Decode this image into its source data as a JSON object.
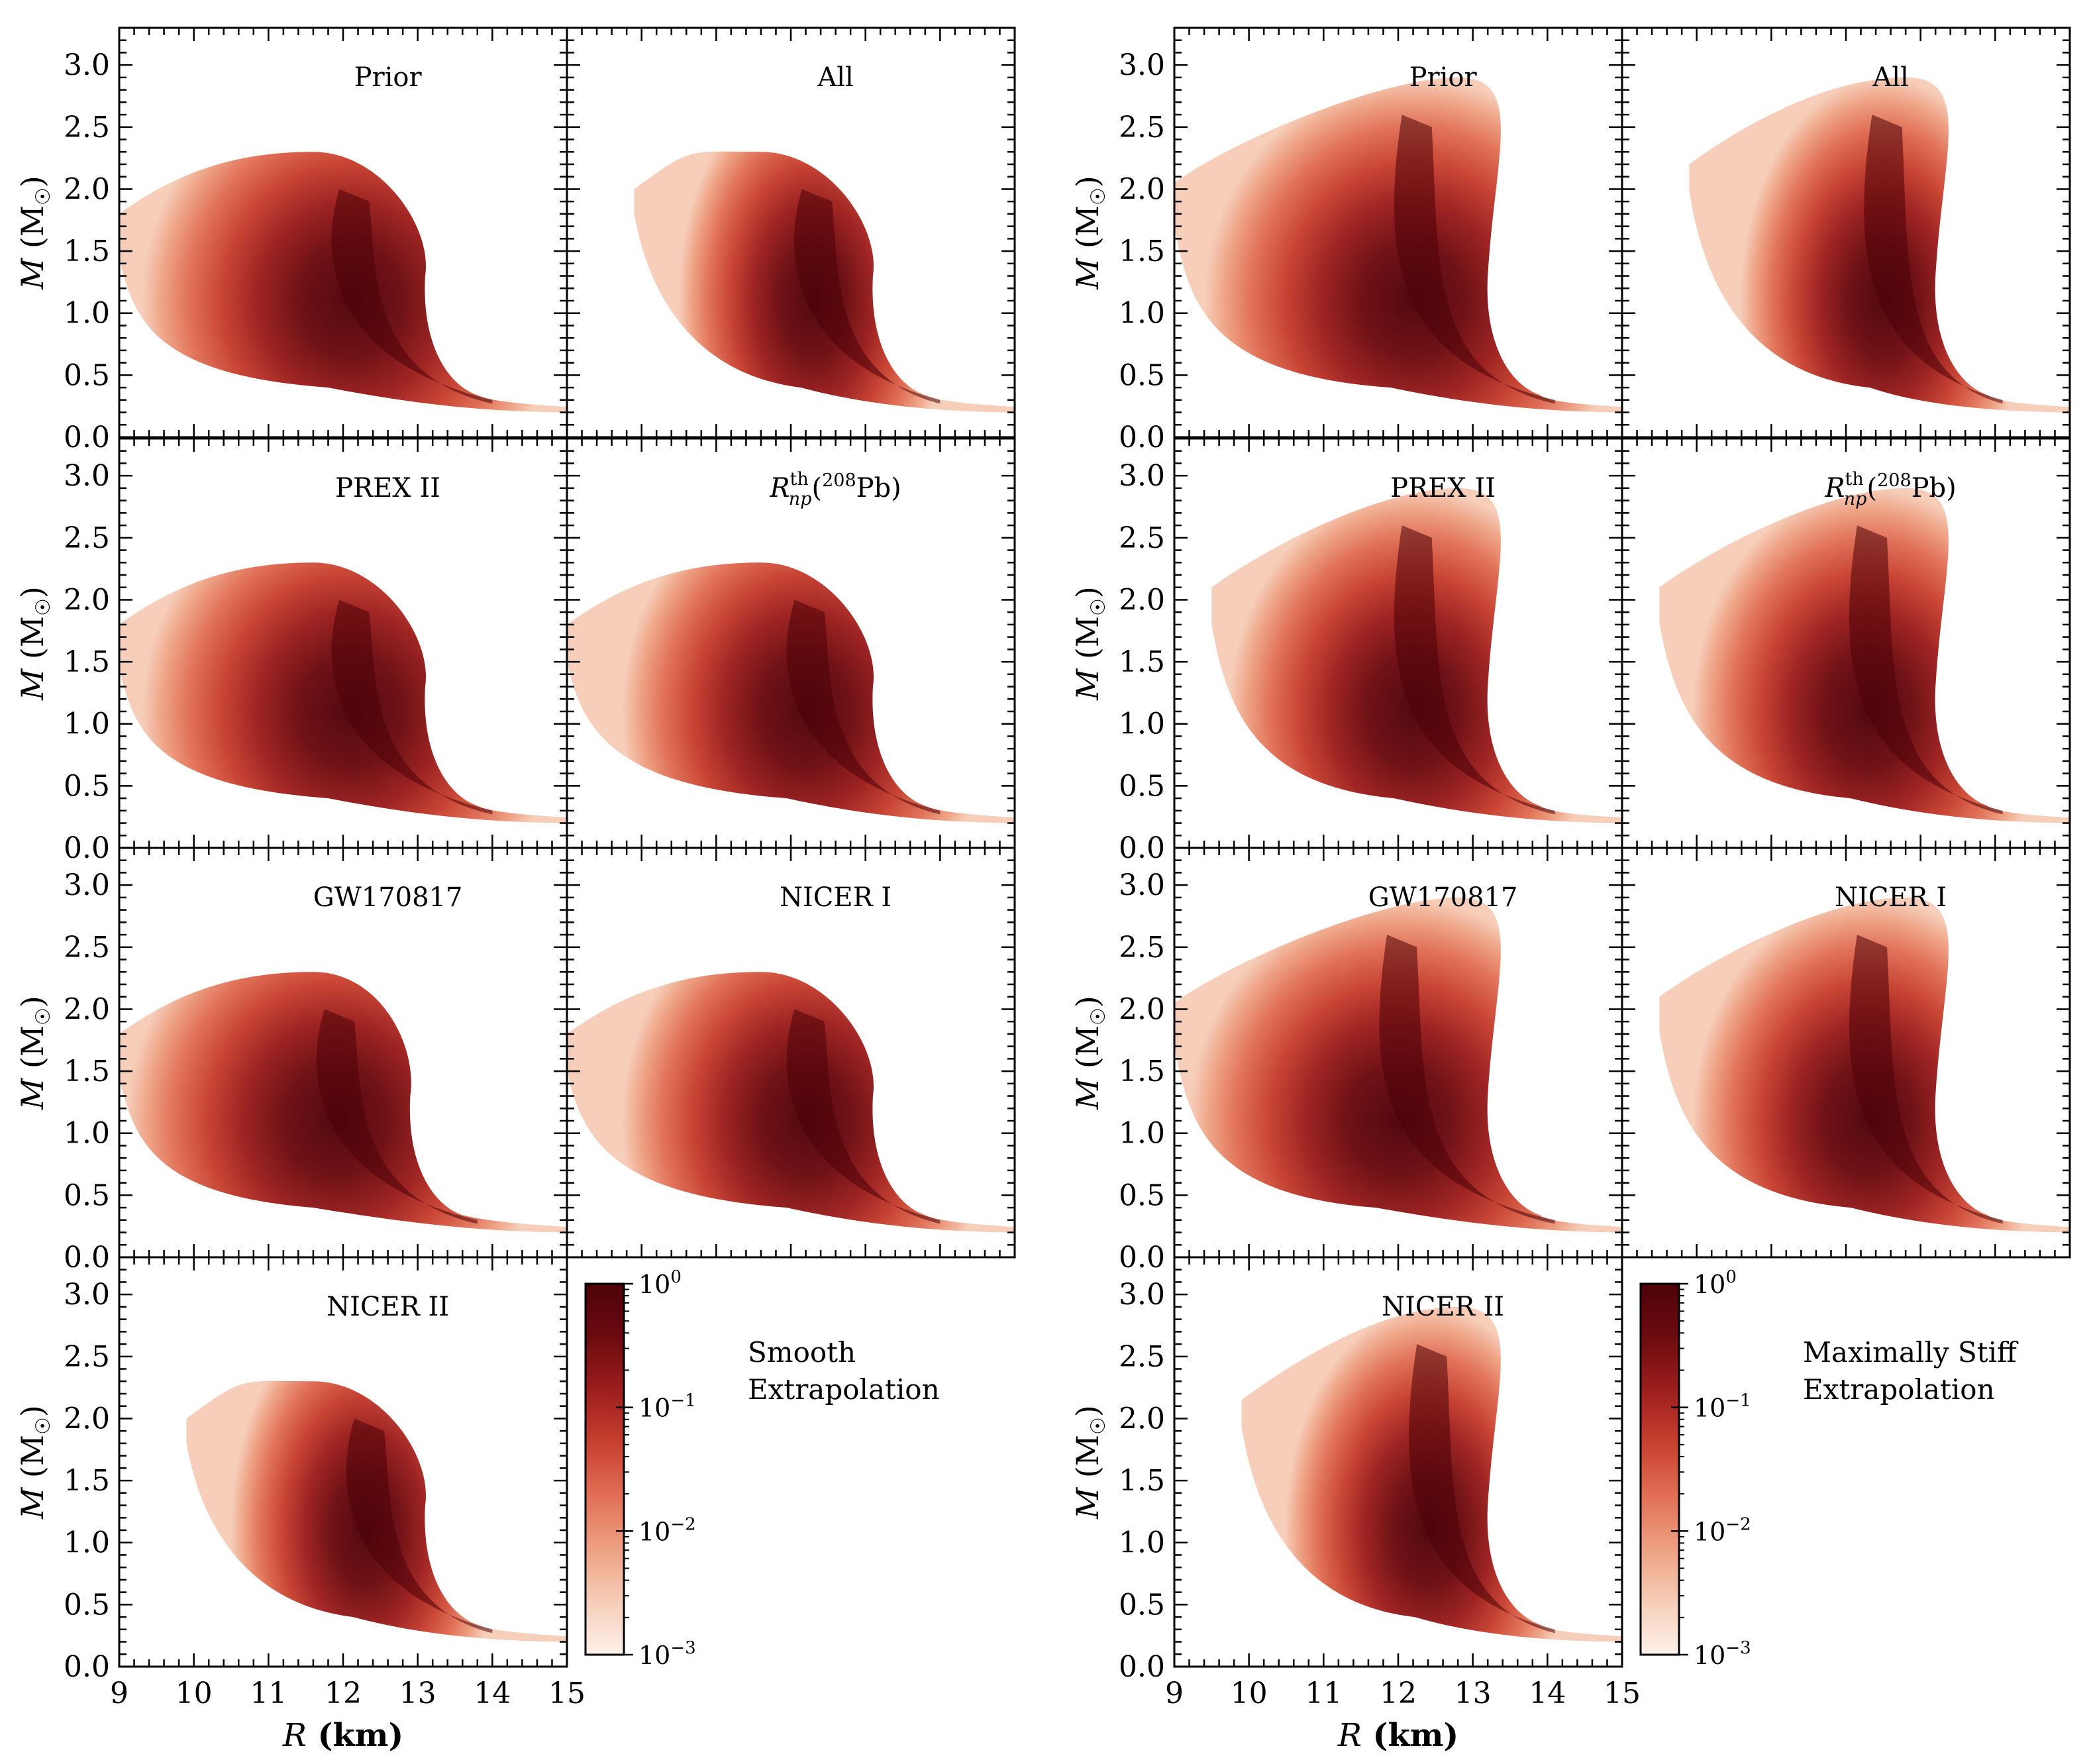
{
  "colors": {
    "scale": [
      "#fdf1ea",
      "#f6cdb8",
      "#eea082",
      "#e06f55",
      "#c7402f",
      "#9c1e1d",
      "#6b0b10",
      "#4d0208"
    ],
    "axis": "#000000",
    "background": "#ffffff"
  },
  "axes": {
    "xlabel_var": "R",
    "xlabel_unit": "(km)",
    "ylabel_var": "M",
    "ylabel_unit": "(M",
    "ylabel_sun": "☉",
    "ylabel_close": ")",
    "x_ticks": [
      "9",
      "10",
      "11",
      "12",
      "13",
      "14",
      "15"
    ],
    "y_ticks": [
      "0.0",
      "0.5",
      "1.0",
      "1.5",
      "2.0",
      "2.5",
      "3.0"
    ]
  },
  "colorbar": {
    "tick_base": "10",
    "exponents": [
      "0",
      "−1",
      "−2",
      "−3"
    ]
  },
  "chart_data": [
    {
      "group": "Smooth Extrapolation",
      "type": "heatmap",
      "xlabel": "R (km)",
      "ylabel": "M (M☉)",
      "xlim": [
        9,
        15
      ],
      "ylim": [
        0,
        3.3
      ],
      "colorbar": {
        "label_lines": [
          "Smooth",
          "Extrapolation"
        ],
        "scale": "log",
        "range": [
          0.001,
          1
        ]
      },
      "panels": [
        {
          "title": "Prior",
          "peak_R": 12.1,
          "max_mass": 2.3,
          "max_mass_R": 11.6,
          "min_R": 9.0,
          "left_edge_M": 1.8,
          "knee_R": 13.5,
          "width": 1.0
        },
        {
          "title": "All",
          "peak_R": 12.3,
          "max_mass": 2.3,
          "max_mass_R": 11.6,
          "min_R": 9.9,
          "left_edge_M": 2.0,
          "knee_R": 13.5,
          "width": 0.55
        },
        {
          "title": "PREX II",
          "peak_R": 12.1,
          "max_mass": 2.3,
          "max_mass_R": 11.6,
          "min_R": 9.0,
          "left_edge_M": 1.8,
          "knee_R": 13.5,
          "width": 1.0
        },
        {
          "title_base": "R",
          "title_sup": "th",
          "title_sub": "np",
          "title_tail": "(",
          "title_iso": "208",
          "title_elem": "Pb)",
          "peak_R": 12.2,
          "max_mass": 2.3,
          "max_mass_R": 11.6,
          "min_R": 9.0,
          "left_edge_M": 1.8,
          "knee_R": 13.5,
          "width": 0.85
        },
        {
          "title": "GW170817",
          "peak_R": 11.9,
          "max_mass": 2.3,
          "max_mass_R": 11.6,
          "min_R": 9.0,
          "left_edge_M": 1.8,
          "knee_R": 13.3,
          "width": 1.0
        },
        {
          "title": "NICER I",
          "peak_R": 12.2,
          "max_mass": 2.3,
          "max_mass_R": 11.6,
          "min_R": 9.0,
          "left_edge_M": 1.8,
          "knee_R": 13.5,
          "width": 0.85
        },
        {
          "title": "NICER II",
          "peak_R": 12.3,
          "max_mass": 2.3,
          "max_mass_R": 11.6,
          "min_R": 9.9,
          "left_edge_M": 2.0,
          "knee_R": 13.5,
          "width": 0.55
        }
      ]
    },
    {
      "group": "Maximally Stiff Extrapolation",
      "type": "heatmap",
      "xlabel": "R (km)",
      "ylabel": "M (M☉)",
      "xlim": [
        9,
        15
      ],
      "ylim": [
        0,
        3.3
      ],
      "colorbar": {
        "label_lines": [
          "Maximally Stiff",
          "Extrapolation"
        ],
        "scale": "log",
        "range": [
          0.001,
          1
        ]
      },
      "panels": [
        {
          "title": "Prior",
          "peak_R": 12.2,
          "max_mass": 2.9,
          "max_mass_R": 12.8,
          "min_R": 9.0,
          "left_edge_M": 2.05,
          "knee_R": 13.6,
          "width": 1.0
        },
        {
          "title": "All",
          "peak_R": 12.5,
          "max_mass": 2.9,
          "max_mass_R": 12.8,
          "min_R": 9.9,
          "left_edge_M": 2.2,
          "knee_R": 13.6,
          "width": 0.6
        },
        {
          "title": "PREX II",
          "peak_R": 12.2,
          "max_mass": 2.9,
          "max_mass_R": 12.8,
          "min_R": 9.5,
          "left_edge_M": 2.1,
          "knee_R": 13.6,
          "width": 0.85
        },
        {
          "title_base": "R",
          "title_sup": "th",
          "title_sub": "np",
          "title_tail": "(",
          "title_iso": "208",
          "title_elem": "Pb)",
          "peak_R": 12.3,
          "max_mass": 2.9,
          "max_mass_R": 12.8,
          "min_R": 9.5,
          "left_edge_M": 2.1,
          "knee_R": 13.6,
          "width": 0.8
        },
        {
          "title": "GW170817",
          "peak_R": 12.0,
          "max_mass": 2.9,
          "max_mass_R": 12.8,
          "min_R": 9.0,
          "left_edge_M": 2.05,
          "knee_R": 13.6,
          "width": 1.0
        },
        {
          "title": "NICER I",
          "peak_R": 12.3,
          "max_mass": 2.9,
          "max_mass_R": 12.8,
          "min_R": 9.5,
          "left_edge_M": 2.1,
          "knee_R": 13.6,
          "width": 0.8
        },
        {
          "title": "NICER II",
          "peak_R": 12.4,
          "max_mass": 2.9,
          "max_mass_R": 12.8,
          "min_R": 9.9,
          "left_edge_M": 2.15,
          "knee_R": 13.6,
          "width": 0.6
        }
      ]
    }
  ]
}
